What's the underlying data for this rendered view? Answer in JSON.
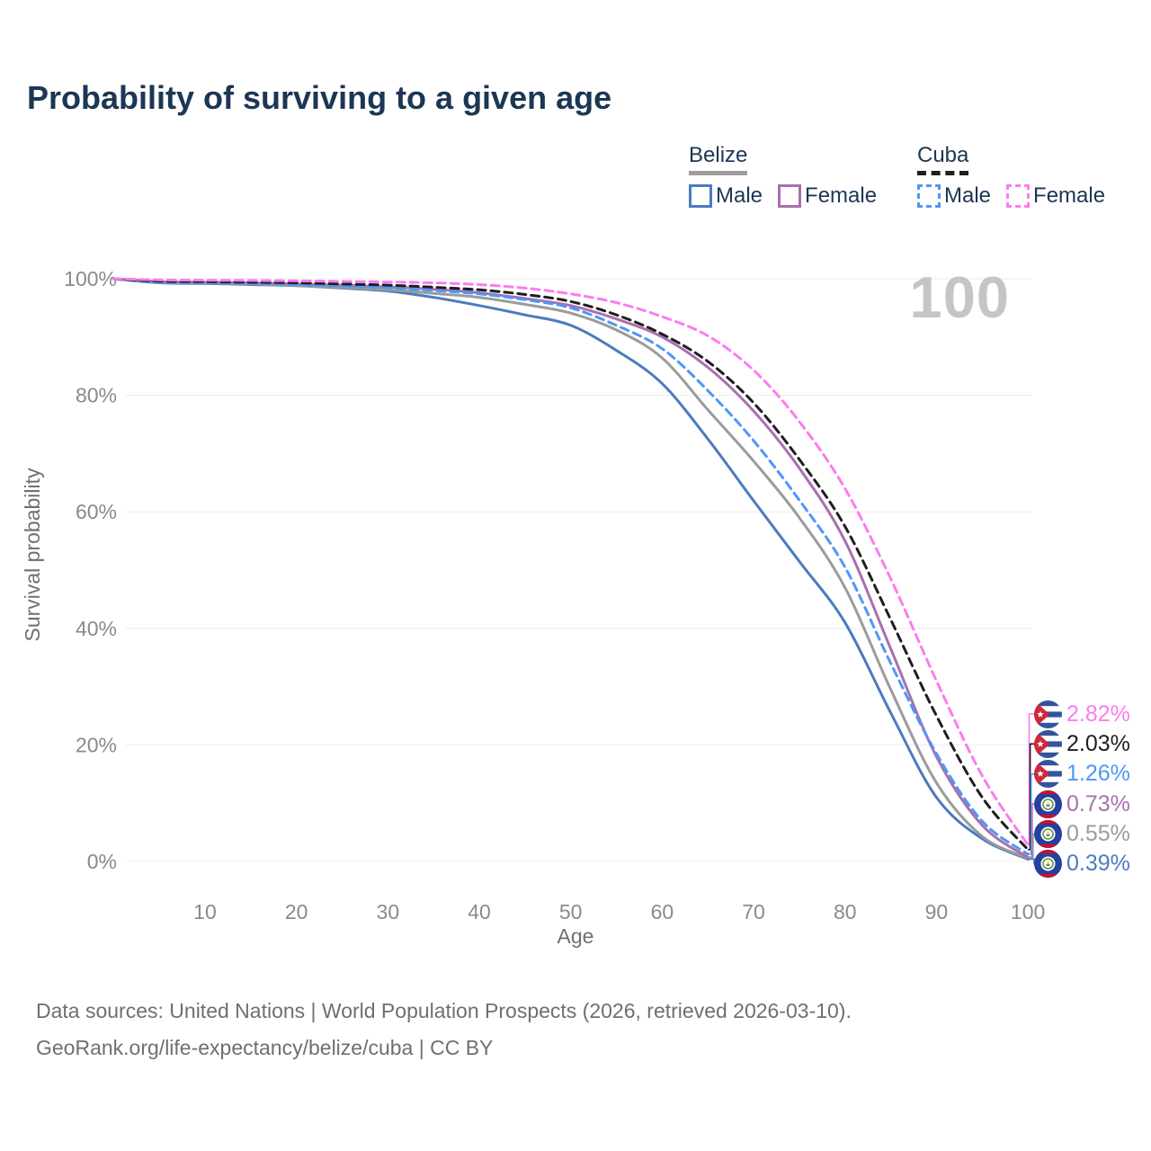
{
  "page": {
    "title": "Probability of surviving to a given age",
    "watermark_age": "100"
  },
  "legend": {
    "groups": [
      {
        "id": "belize",
        "title": "Belize",
        "underline_style": "solid",
        "underline_color": "#9e9e9e",
        "items": [
          {
            "label": "Male",
            "color": "#4a7cbd",
            "dash": "solid"
          },
          {
            "label": "Female",
            "color": "#a96fb0",
            "dash": "solid"
          }
        ]
      },
      {
        "id": "cuba",
        "title": "Cuba",
        "underline_style": "dashed",
        "underline_color": "#1f1f1f",
        "items": [
          {
            "label": "Male",
            "color": "#4f97f7",
            "dash": "dashed"
          },
          {
            "label": "Female",
            "color": "#fb7cef",
            "dash": "dashed"
          }
        ]
      }
    ]
  },
  "chart_data": {
    "type": "line",
    "title": "Probability of surviving to a given age",
    "xlabel": "Age",
    "ylabel": "Survival probability",
    "xlim": [
      0,
      100
    ],
    "ylim": [
      0,
      100
    ],
    "grid": "horizontal",
    "grid_color": "#ececec",
    "tick_color": "#8a8a8a",
    "axis_title_color": "#6f6f6f",
    "x_ticks": [
      10,
      20,
      30,
      40,
      50,
      60,
      70,
      80,
      90,
      100
    ],
    "y_ticks": [
      {
        "value": 100,
        "label": "100%"
      },
      {
        "value": 80,
        "label": "80%"
      },
      {
        "value": 60,
        "label": "60%"
      },
      {
        "value": 40,
        "label": "40%"
      },
      {
        "value": 20,
        "label": "20%"
      },
      {
        "value": 0,
        "label": "0%"
      }
    ],
    "x": [
      0,
      5,
      10,
      15,
      20,
      25,
      30,
      35,
      40,
      45,
      50,
      55,
      60,
      65,
      70,
      75,
      80,
      85,
      90,
      95,
      100
    ],
    "series": [
      {
        "id": "belize_male",
        "name": "Belize Male",
        "country": "Belize",
        "sex": "Male",
        "color": "#4a7cbd",
        "dash": "solid",
        "values": [
          100,
          99.3,
          99.2,
          99.0,
          98.8,
          98.4,
          97.9,
          96.8,
          95.4,
          93.8,
          92.0,
          87.7,
          82.0,
          72.5,
          61.9,
          51.5,
          41.0,
          25.5,
          11.0,
          3.9,
          0.39
        ]
      },
      {
        "id": "belize_both",
        "name": "Belize Both sexes",
        "country": "Belize",
        "sex": "Both",
        "color": "#9b9b9b",
        "dash": "solid",
        "values": [
          100,
          99.4,
          99.3,
          99.1,
          98.85,
          98.5,
          98.1,
          97.5,
          96.8,
          95.6,
          94.1,
          91.2,
          86.4,
          77.5,
          68.7,
          59.0,
          47.0,
          29.5,
          13.5,
          4.3,
          0.55
        ]
      },
      {
        "id": "belize_female",
        "name": "Belize Female",
        "country": "Belize",
        "sex": "Female",
        "color": "#a96fb0",
        "dash": "solid",
        "values": [
          100,
          99.5,
          99.4,
          99.3,
          99.1,
          98.9,
          98.6,
          98.2,
          97.6,
          96.6,
          95.4,
          93.1,
          90.0,
          84.8,
          77.3,
          67.5,
          55.0,
          36.5,
          18.0,
          6.2,
          0.73
        ]
      },
      {
        "id": "cuba_male",
        "name": "Cuba Male",
        "country": "Cuba",
        "sex": "Male",
        "color": "#4f97f7",
        "dash": "dashed",
        "values": [
          100,
          99.45,
          99.35,
          99.2,
          99.0,
          98.75,
          98.45,
          98.0,
          97.4,
          96.4,
          95.0,
          92.0,
          88.0,
          80.8,
          72.2,
          62.0,
          50.5,
          34.0,
          18.5,
          6.9,
          1.26
        ]
      },
      {
        "id": "cuba_both",
        "name": "Cuba Both sexes",
        "country": "Cuba",
        "sex": "Both",
        "color": "#1e1e1e",
        "dash": "dashed",
        "values": [
          100,
          99.6,
          99.5,
          99.4,
          99.3,
          99.1,
          98.9,
          98.55,
          98.1,
          97.3,
          96.1,
          93.8,
          90.5,
          85.8,
          78.7,
          69.0,
          57.5,
          41.5,
          25.0,
          11.0,
          2.03
        ]
      },
      {
        "id": "cuba_female",
        "name": "Cuba Female",
        "country": "Cuba",
        "sex": "Female",
        "color": "#fb7cef",
        "dash": "dashed",
        "values": [
          100,
          99.8,
          99.75,
          99.7,
          99.65,
          99.55,
          99.45,
          99.3,
          99.0,
          98.4,
          97.4,
          95.9,
          93.5,
          90.2,
          84.3,
          75.5,
          64.0,
          48.5,
          31.0,
          14.7,
          2.82
        ]
      }
    ],
    "end_labels": [
      {
        "series": "cuba_female",
        "label": "2.82%",
        "value": 2.82,
        "flag": "cuba",
        "color": "#fb7cef"
      },
      {
        "series": "cuba_both",
        "label": "2.03%",
        "value": 2.03,
        "flag": "cuba",
        "color": "#1e1e1e"
      },
      {
        "series": "cuba_male",
        "label": "1.26%",
        "value": 1.26,
        "flag": "cuba",
        "color": "#4f97f7"
      },
      {
        "series": "belize_female",
        "label": "0.73%",
        "value": 0.73,
        "flag": "belize",
        "color": "#a96fb0"
      },
      {
        "series": "belize_both",
        "label": "0.55%",
        "value": 0.55,
        "flag": "belize",
        "color": "#9b9b9b"
      },
      {
        "series": "belize_male",
        "label": "0.39%",
        "value": 0.39,
        "flag": "belize",
        "color": "#4a7cbd"
      }
    ]
  },
  "flags": {
    "cuba": {
      "blue": "#33549b",
      "white": "#ffffff",
      "red": "#ce2939"
    },
    "belize": {
      "blue": "#2640a0",
      "red": "#c8102e",
      "white": "#ffffff",
      "green": "#6f9d3e",
      "yellow": "#e9c84c",
      "small_blue": "#3f6cb1"
    }
  },
  "footer": {
    "line1": "Data sources: United Nations | World Population Prospects (2026, retrieved 2026-03-10).",
    "line2": "GeoRank.org/life-expectancy/belize/cuba | CC BY"
  }
}
